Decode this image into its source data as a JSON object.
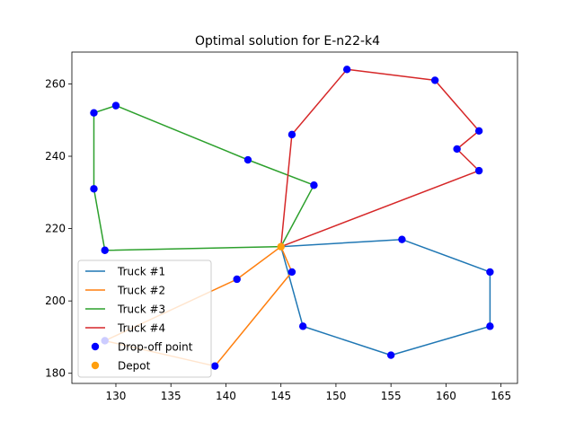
{
  "chart_data": {
    "type": "scatter",
    "title": "Optimal solution for E-n22-k4",
    "xlabel": "",
    "ylabel": "",
    "xlim": [
      126,
      166.5
    ],
    "ylim": [
      177.2,
      268.8
    ],
    "xticks": [
      130,
      135,
      140,
      145,
      150,
      155,
      160,
      165
    ],
    "yticks": [
      180,
      200,
      220,
      240,
      260
    ],
    "grid": false,
    "legend_position": "lower-left",
    "depot": {
      "x": 145,
      "y": 215,
      "label": "Depot",
      "color": "#ff9f0e"
    },
    "drop_off_points": {
      "label": "Drop-off point",
      "color": "#0000ff",
      "points": [
        [
          151,
          264
        ],
        [
          159,
          261
        ],
        [
          130,
          254
        ],
        [
          128,
          252
        ],
        [
          163,
          247
        ],
        [
          146,
          246
        ],
        [
          161,
          242
        ],
        [
          142,
          239
        ],
        [
          163,
          236
        ],
        [
          148,
          232
        ],
        [
          128,
          231
        ],
        [
          156,
          217
        ],
        [
          129,
          214
        ],
        [
          146,
          208
        ],
        [
          164,
          208
        ],
        [
          141,
          206
        ],
        [
          147,
          193
        ],
        [
          164,
          193
        ],
        [
          129,
          189
        ],
        [
          155,
          185
        ],
        [
          139,
          182
        ]
      ]
    },
    "series": [
      {
        "name": "Truck #1",
        "color": "#1f77b4",
        "route": [
          [
            145,
            215
          ],
          [
            156,
            217
          ],
          [
            164,
            208
          ],
          [
            164,
            193
          ],
          [
            155,
            185
          ],
          [
            147,
            193
          ],
          [
            145,
            215
          ]
        ]
      },
      {
        "name": "Truck #2",
        "color": "#ff7f0e",
        "route": [
          [
            145,
            215
          ],
          [
            141,
            206
          ],
          [
            129,
            189
          ],
          [
            139,
            182
          ],
          [
            146,
            208
          ],
          [
            145,
            215
          ]
        ]
      },
      {
        "name": "Truck #3",
        "color": "#2ca02c",
        "route": [
          [
            145,
            215
          ],
          [
            148,
            232
          ],
          [
            142,
            239
          ],
          [
            130,
            254
          ],
          [
            128,
            252
          ],
          [
            128,
            231
          ],
          [
            129,
            214
          ],
          [
            145,
            215
          ]
        ]
      },
      {
        "name": "Truck #4",
        "color": "#d62728",
        "route": [
          [
            145,
            215
          ],
          [
            146,
            246
          ],
          [
            151,
            264
          ],
          [
            159,
            261
          ],
          [
            163,
            247
          ],
          [
            161,
            242
          ],
          [
            163,
            236
          ],
          [
            145,
            215
          ]
        ]
      }
    ]
  }
}
